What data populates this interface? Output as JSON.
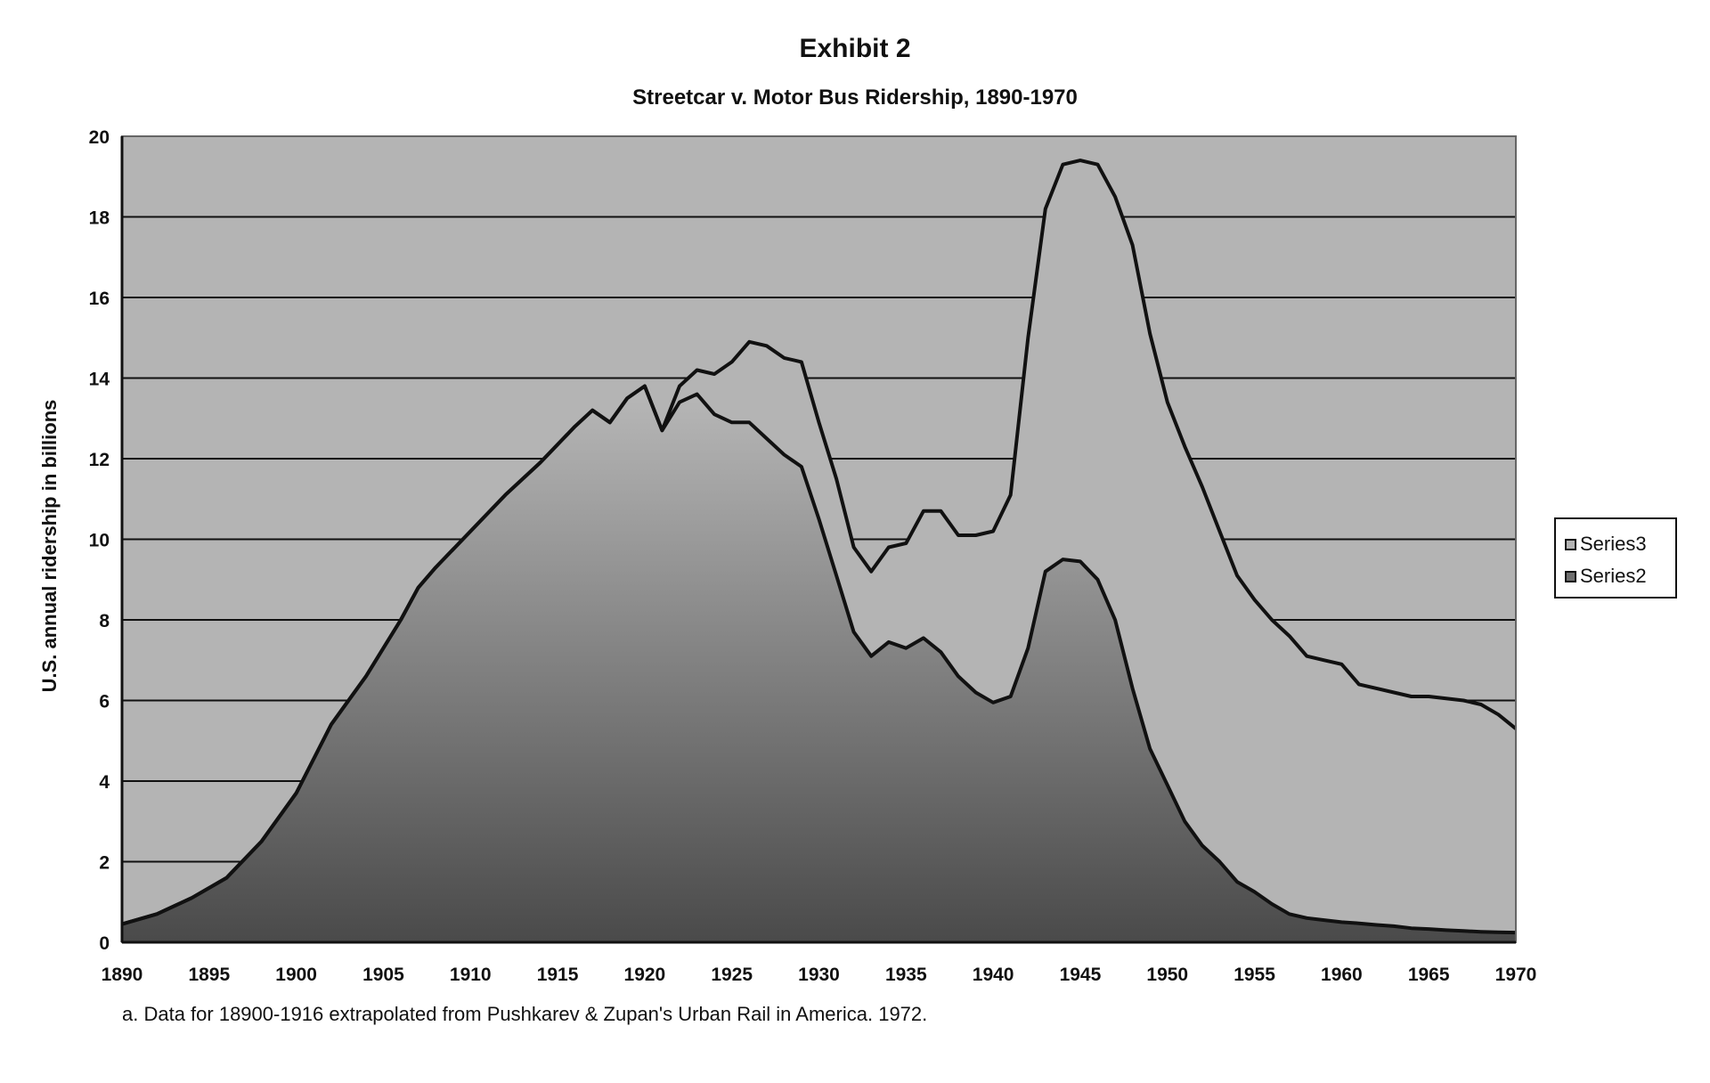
{
  "title": "Exhibit 2",
  "subtitle": "Streetcar v. Motor Bus Ridership, 1890-1970",
  "footnote": "a. Data for 18900-1916 extrapolated from Pushkarev & Zupan's Urban Rail in America. 1972.",
  "colors": {
    "plot_background": "#b4b4b4",
    "series3_fill": "#b4b4b4",
    "series2_fill_top": "#b8b8b8",
    "series2_fill_bottom": "#4a4a4a",
    "outline": "#111111",
    "grid": "#111111"
  },
  "legend_items": [
    {
      "label": "Series3",
      "color": "#b4b4b4"
    },
    {
      "label": "Series2",
      "color": "#6f6f6f"
    }
  ],
  "chart_data": {
    "type": "area",
    "title": "Exhibit 2",
    "subtitle": "Streetcar v. Motor Bus Ridership, 1890-1970",
    "xlabel": "",
    "ylabel": "U.S. annual ridership in billions",
    "xlim": [
      1890,
      1970
    ],
    "ylim": [
      0,
      20
    ],
    "x_ticks": [
      1890,
      1895,
      1900,
      1905,
      1910,
      1915,
      1920,
      1925,
      1930,
      1935,
      1940,
      1945,
      1950,
      1955,
      1960,
      1965,
      1970
    ],
    "y_ticks": [
      0,
      2,
      4,
      6,
      8,
      10,
      12,
      14,
      16,
      18,
      20
    ],
    "grid": "horizontal",
    "legend_position": "right",
    "series": [
      {
        "name": "Series3",
        "points": [
          [
            1890,
            0.45
          ],
          [
            1892,
            0.7
          ],
          [
            1894,
            1.1
          ],
          [
            1896,
            1.6
          ],
          [
            1898,
            2.5
          ],
          [
            1900,
            3.7
          ],
          [
            1902,
            5.4
          ],
          [
            1904,
            6.6
          ],
          [
            1906,
            8.0
          ],
          [
            1907,
            8.8
          ],
          [
            1908,
            9.3
          ],
          [
            1910,
            10.2
          ],
          [
            1912,
            11.1
          ],
          [
            1914,
            11.9
          ],
          [
            1916,
            12.8
          ],
          [
            1917,
            13.2
          ],
          [
            1918,
            12.9
          ],
          [
            1919,
            13.5
          ],
          [
            1920,
            13.8
          ],
          [
            1921,
            12.7
          ],
          [
            1922,
            13.8
          ],
          [
            1923,
            14.2
          ],
          [
            1924,
            14.1
          ],
          [
            1925,
            14.4
          ],
          [
            1926,
            14.9
          ],
          [
            1927,
            14.8
          ],
          [
            1928,
            14.5
          ],
          [
            1929,
            14.4
          ],
          [
            1930,
            12.9
          ],
          [
            1931,
            11.5
          ],
          [
            1932,
            9.8
          ],
          [
            1933,
            9.2
          ],
          [
            1934,
            9.8
          ],
          [
            1935,
            9.9
          ],
          [
            1936,
            10.7
          ],
          [
            1937,
            10.7
          ],
          [
            1938,
            10.1
          ],
          [
            1939,
            10.1
          ],
          [
            1940,
            10.2
          ],
          [
            1941,
            11.1
          ],
          [
            1942,
            15.0
          ],
          [
            1943,
            18.2
          ],
          [
            1944,
            19.3
          ],
          [
            1945,
            19.4
          ],
          [
            1946,
            19.3
          ],
          [
            1947,
            18.5
          ],
          [
            1948,
            17.3
          ],
          [
            1949,
            15.1
          ],
          [
            1950,
            13.4
          ],
          [
            1951,
            12.3
          ],
          [
            1952,
            11.3
          ],
          [
            1953,
            10.2
          ],
          [
            1954,
            9.1
          ],
          [
            1955,
            8.5
          ],
          [
            1956,
            8.0
          ],
          [
            1957,
            7.6
          ],
          [
            1958,
            7.1
          ],
          [
            1959,
            7.0
          ],
          [
            1960,
            6.9
          ],
          [
            1961,
            6.4
          ],
          [
            1962,
            6.3
          ],
          [
            1963,
            6.2
          ],
          [
            1964,
            6.1
          ],
          [
            1965,
            6.1
          ],
          [
            1966,
            6.05
          ],
          [
            1967,
            6.0
          ],
          [
            1968,
            5.9
          ],
          [
            1969,
            5.65
          ],
          [
            1970,
            5.3
          ]
        ]
      },
      {
        "name": "Series2",
        "points": [
          [
            1890,
            0.45
          ],
          [
            1892,
            0.7
          ],
          [
            1894,
            1.1
          ],
          [
            1896,
            1.6
          ],
          [
            1898,
            2.5
          ],
          [
            1900,
            3.7
          ],
          [
            1902,
            5.4
          ],
          [
            1904,
            6.6
          ],
          [
            1906,
            8.0
          ],
          [
            1907,
            8.8
          ],
          [
            1908,
            9.3
          ],
          [
            1910,
            10.2
          ],
          [
            1912,
            11.1
          ],
          [
            1914,
            11.9
          ],
          [
            1916,
            12.8
          ],
          [
            1917,
            13.2
          ],
          [
            1918,
            12.9
          ],
          [
            1919,
            13.5
          ],
          [
            1920,
            13.8
          ],
          [
            1921,
            12.7
          ],
          [
            1922,
            13.4
          ],
          [
            1923,
            13.6
          ],
          [
            1924,
            13.1
          ],
          [
            1925,
            12.9
          ],
          [
            1926,
            12.9
          ],
          [
            1927,
            12.5
          ],
          [
            1928,
            12.1
          ],
          [
            1929,
            11.8
          ],
          [
            1930,
            10.5
          ],
          [
            1931,
            9.1
          ],
          [
            1932,
            7.7
          ],
          [
            1933,
            7.1
          ],
          [
            1934,
            7.45
          ],
          [
            1935,
            7.3
          ],
          [
            1936,
            7.55
          ],
          [
            1937,
            7.2
          ],
          [
            1938,
            6.6
          ],
          [
            1939,
            6.2
          ],
          [
            1940,
            5.95
          ],
          [
            1941,
            6.1
          ],
          [
            1942,
            7.3
          ],
          [
            1943,
            9.2
          ],
          [
            1944,
            9.5
          ],
          [
            1945,
            9.45
          ],
          [
            1946,
            9.0
          ],
          [
            1947,
            8.0
          ],
          [
            1948,
            6.3
          ],
          [
            1949,
            4.8
          ],
          [
            1950,
            3.9
          ],
          [
            1951,
            3.0
          ],
          [
            1952,
            2.4
          ],
          [
            1953,
            2.0
          ],
          [
            1954,
            1.5
          ],
          [
            1955,
            1.25
          ],
          [
            1956,
            0.95
          ],
          [
            1957,
            0.7
          ],
          [
            1958,
            0.6
          ],
          [
            1959,
            0.55
          ],
          [
            1960,
            0.5
          ],
          [
            1961,
            0.47
          ],
          [
            1962,
            0.43
          ],
          [
            1963,
            0.4
          ],
          [
            1964,
            0.35
          ],
          [
            1965,
            0.33
          ],
          [
            1966,
            0.3
          ],
          [
            1967,
            0.28
          ],
          [
            1968,
            0.26
          ],
          [
            1969,
            0.25
          ],
          [
            1970,
            0.24
          ]
        ]
      }
    ]
  }
}
